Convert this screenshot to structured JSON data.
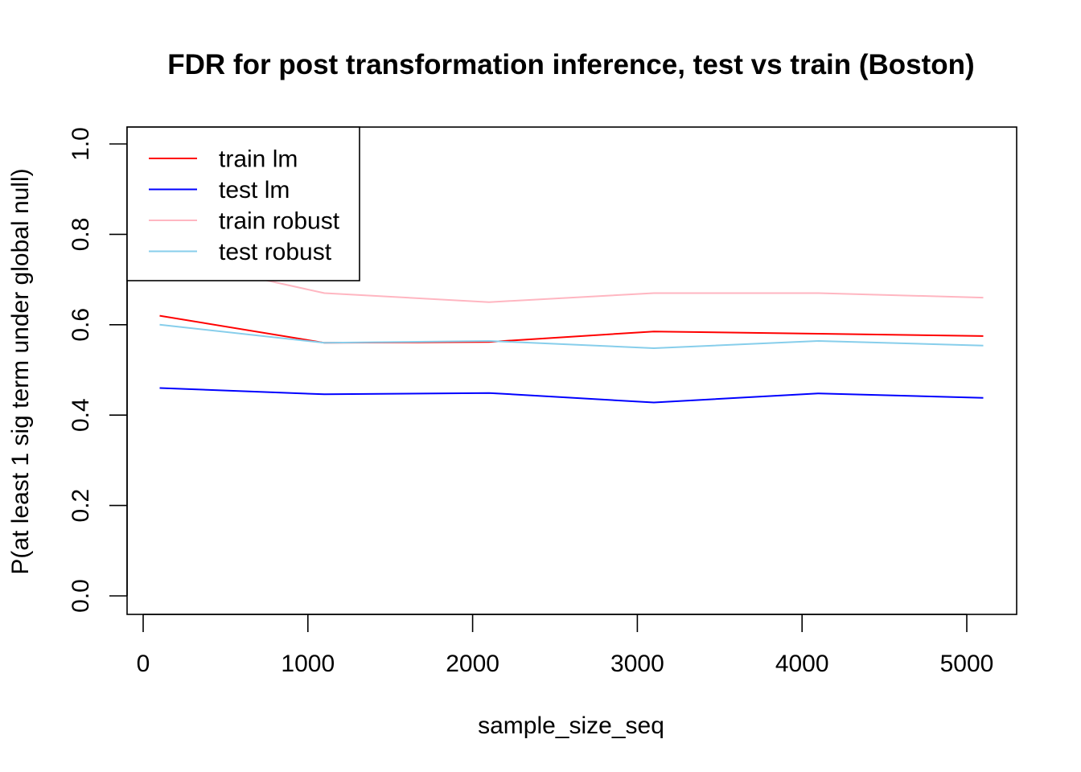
{
  "chart_data": {
    "type": "line",
    "title": "FDR for post transformation inference, test vs train (Boston)",
    "xlabel": "sample_size_seq",
    "ylabel": "P(at least 1 sig term under global null)",
    "x": [
      100,
      1100,
      2100,
      3100,
      4100,
      5100
    ],
    "xlim": [
      0,
      5100
    ],
    "ylim": [
      0.0,
      1.0
    ],
    "xticks": [
      0,
      1000,
      2000,
      3000,
      4000,
      5000
    ],
    "yticks": [
      "0.0",
      "0.2",
      "0.4",
      "0.6",
      "0.8",
      "1.0"
    ],
    "grid": false,
    "legend_position": "top-left",
    "series": [
      {
        "name": "train lm",
        "color": "#ff0000",
        "values": [
          0.62,
          0.56,
          0.562,
          0.585,
          0.58,
          0.575
        ]
      },
      {
        "name": "test lm",
        "color": "#0000ff",
        "values": [
          0.46,
          0.446,
          0.449,
          0.428,
          0.448,
          0.438
        ]
      },
      {
        "name": "train robust",
        "color": "#ffb6c1",
        "values": [
          0.75,
          0.67,
          0.65,
          0.67,
          0.67,
          0.66
        ]
      },
      {
        "name": "test robust",
        "color": "#87ceeb",
        "values": [
          0.6,
          0.56,
          0.564,
          0.548,
          0.564,
          0.554
        ]
      }
    ]
  }
}
